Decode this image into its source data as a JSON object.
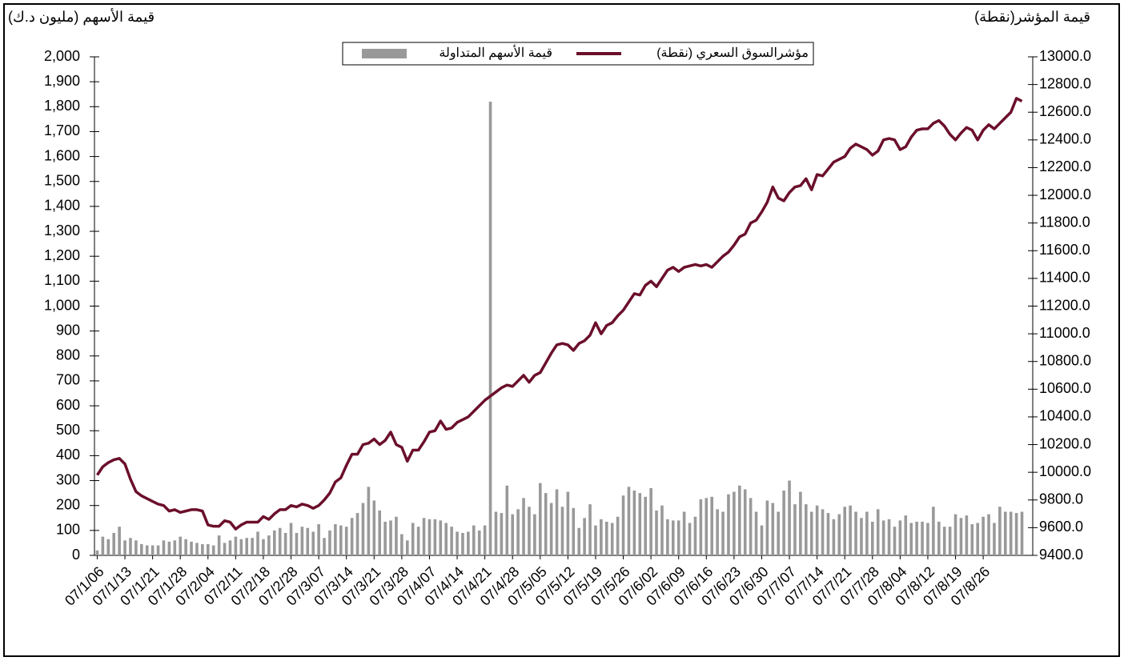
{
  "chart_data": {
    "type": "bar_line",
    "y_label": "قيمة الأسهم (مليون د.ك)",
    "y2_label": "قيمة المؤشر(نقطة)",
    "categories": [
      "07/1/06",
      null,
      null,
      null,
      null,
      "07/1/13",
      null,
      null,
      null,
      null,
      "07/1/21",
      null,
      null,
      null,
      null,
      "07/1/28",
      null,
      null,
      null,
      null,
      "07/2/04",
      null,
      null,
      null,
      null,
      "07/2/11",
      null,
      null,
      null,
      null,
      "07/2/18",
      null,
      null,
      null,
      null,
      "07/2/28",
      null,
      null,
      null,
      null,
      "07/3/07",
      null,
      null,
      null,
      null,
      "07/3/14",
      null,
      null,
      null,
      null,
      "07/3/21",
      null,
      null,
      null,
      null,
      "07/3/28",
      null,
      null,
      null,
      null,
      "07/4/07",
      null,
      null,
      null,
      null,
      "07/4/14",
      null,
      null,
      null,
      null,
      "07/4/21",
      null,
      null,
      null,
      null,
      "07/4/28",
      null,
      null,
      null,
      null,
      "07/5/05",
      null,
      null,
      null,
      null,
      "07/5/12",
      null,
      null,
      null,
      null,
      "07/5/19",
      null,
      null,
      null,
      null,
      "07/5/26",
      null,
      null,
      null,
      null,
      "07/6/02",
      null,
      null,
      null,
      null,
      "07/6/09",
      null,
      null,
      null,
      null,
      "07/6/16",
      null,
      null,
      null,
      null,
      "07/6/23",
      null,
      null,
      null,
      null,
      "07/6/30",
      null,
      null,
      null,
      null,
      "07/7/07",
      null,
      null,
      null,
      null,
      "07/7/14",
      null,
      null,
      null,
      null,
      "07/7/21",
      null,
      null,
      null,
      null,
      "07/7/28",
      null,
      null,
      null,
      null,
      "07/8/04",
      null,
      null,
      null,
      null,
      "07/8/12",
      null,
      null,
      null,
      null,
      "07/8/19",
      null,
      null,
      null,
      null,
      "07/8/26",
      null,
      null,
      null,
      null,
      null,
      null,
      null
    ],
    "series": [
      {
        "name": "قيمة الأسهم المتداولة",
        "type": "bar",
        "axis": "y",
        "color": "#999999",
        "values": [
          20,
          75,
          65,
          90,
          115,
          60,
          70,
          60,
          45,
          40,
          40,
          40,
          60,
          55,
          60,
          75,
          65,
          55,
          50,
          45,
          45,
          40,
          80,
          50,
          60,
          75,
          65,
          70,
          70,
          95,
          65,
          80,
          100,
          110,
          90,
          130,
          90,
          115,
          110,
          95,
          125,
          70,
          100,
          125,
          120,
          115,
          150,
          170,
          210,
          275,
          220,
          180,
          135,
          140,
          155,
          85,
          60,
          130,
          115,
          150,
          145,
          145,
          140,
          130,
          115,
          95,
          90,
          95,
          120,
          100,
          120,
          1820,
          175,
          170,
          280,
          165,
          185,
          230,
          195,
          165,
          290,
          250,
          210,
          265,
          195,
          255,
          190,
          110,
          150,
          205,
          120,
          145,
          135,
          130,
          155,
          240,
          275,
          260,
          250,
          235,
          270,
          180,
          200,
          145,
          140,
          140,
          175,
          130,
          155,
          225,
          230,
          235,
          185,
          175,
          245,
          255,
          280,
          265,
          230,
          175,
          120,
          220,
          210,
          175,
          260,
          300,
          205,
          255,
          205,
          175,
          200,
          185,
          170,
          145,
          165,
          195,
          200,
          175,
          150,
          175,
          135,
          185,
          140,
          145,
          115,
          140,
          160,
          130,
          135,
          135,
          130,
          195,
          135,
          115,
          115,
          165,
          150,
          160,
          125,
          130,
          155,
          165,
          130,
          195,
          175,
          175,
          170,
          175
        ]
      },
      {
        "name": "مؤشرالسوق السعري (نقطة)",
        "type": "line",
        "axis": "y2",
        "color": "#6b0f2b",
        "values": [
          9980,
          10040,
          10070,
          10090,
          10100,
          10060,
          9950,
          9860,
          9830,
          9810,
          9790,
          9770,
          9760,
          9720,
          9730,
          9710,
          9720,
          9730,
          9730,
          9720,
          9620,
          9610,
          9610,
          9650,
          9640,
          9590,
          9620,
          9640,
          9640,
          9640,
          9680,
          9660,
          9700,
          9730,
          9730,
          9760,
          9750,
          9770,
          9760,
          9740,
          9760,
          9800,
          9850,
          9930,
          9960,
          10050,
          10130,
          10130,
          10200,
          10210,
          10240,
          10200,
          10230,
          10290,
          10200,
          10180,
          10080,
          10160,
          10160,
          10220,
          10290,
          10300,
          10370,
          10310,
          10320,
          10360,
          10380,
          10400,
          10440,
          10480,
          10520,
          10550,
          10580,
          10610,
          10630,
          10620,
          10660,
          10700,
          10650,
          10700,
          10720,
          10790,
          10860,
          10920,
          10930,
          10920,
          10880,
          10930,
          10950,
          10990,
          11080,
          11000,
          11060,
          11080,
          11130,
          11170,
          11230,
          11290,
          11280,
          11350,
          11380,
          11340,
          11400,
          11460,
          11480,
          11450,
          11480,
          11490,
          11500,
          11490,
          11500,
          11480,
          11520,
          11560,
          11590,
          11640,
          11700,
          11720,
          11800,
          11820,
          11880,
          11950,
          12060,
          11980,
          11960,
          12020,
          12060,
          12070,
          12120,
          12040,
          12150,
          12140,
          12190,
          12240,
          12260,
          12280,
          12340,
          12370,
          12350,
          12330,
          12290,
          12320,
          12400,
          12410,
          12400,
          12330,
          12350,
          12420,
          12470,
          12480,
          12480,
          12520,
          12540,
          12500,
          12440,
          12400,
          12450,
          12490,
          12470,
          12400,
          12470,
          12510,
          12480,
          12520,
          12560,
          12600,
          12700,
          12680
        ]
      }
    ],
    "ylim": [
      0,
      2000
    ],
    "yticks": [
      0,
      100,
      200,
      300,
      400,
      500,
      600,
      700,
      800,
      900,
      {
        "value": 1000,
        "label": "1,000"
      },
      {
        "value": 1100,
        "label": "1,100"
      },
      {
        "value": 1200,
        "label": "1,200"
      },
      {
        "value": 1300,
        "label": "1,300"
      },
      {
        "value": 1400,
        "label": "1,400"
      },
      {
        "value": 1500,
        "label": "1,500"
      },
      {
        "value": 1600,
        "label": "1,600"
      },
      {
        "value": 1700,
        "label": "1,700"
      },
      {
        "value": 1800,
        "label": "1,800"
      },
      {
        "value": 1900,
        "label": "1,900"
      },
      {
        "value": 2000,
        "label": "2,000"
      }
    ],
    "y2lim": [
      9400,
      13000
    ],
    "y2ticks": [
      {
        "value": 9400,
        "label": "9400.0"
      },
      {
        "value": 9600,
        "label": "9600.0"
      },
      {
        "value": 9800,
        "label": "9800.0"
      },
      {
        "value": 10000,
        "label": "10000.0"
      },
      {
        "value": 10200,
        "label": "10200.0"
      },
      {
        "value": 10400,
        "label": "10400.0"
      },
      {
        "value": 10600,
        "label": "10600.0"
      },
      {
        "value": 10800,
        "label": "10800.0"
      },
      {
        "value": 11000,
        "label": "11000.0"
      },
      {
        "value": 11200,
        "label": "11200.0"
      },
      {
        "value": 11400,
        "label": "11400.0"
      },
      {
        "value": 11600,
        "label": "11600.0"
      },
      {
        "value": 11800,
        "label": "11800.0"
      },
      {
        "value": 12000,
        "label": "12000.0"
      },
      {
        "value": 12200,
        "label": "12200.0"
      },
      {
        "value": 12400,
        "label": "12400.0"
      },
      {
        "value": 12600,
        "label": "12600.0"
      },
      {
        "value": 12800,
        "label": "12800.0"
      },
      {
        "value": 13000,
        "label": "13000.0"
      }
    ],
    "legend": "top"
  }
}
